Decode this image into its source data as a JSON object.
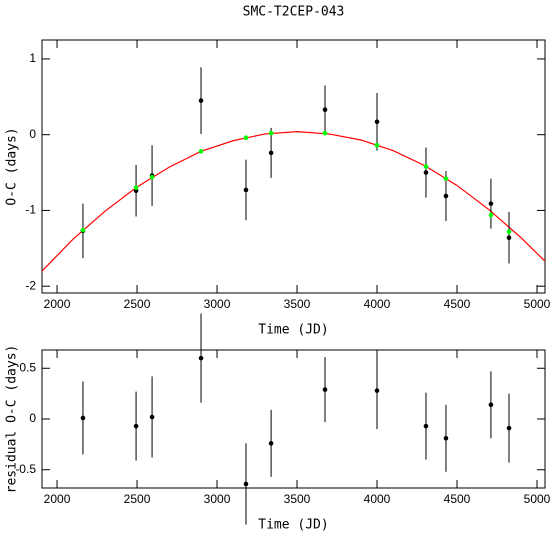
{
  "chart_data": [
    {
      "type": "scatter",
      "title": "SMC-T2CEP-043",
      "xlabel": "Time (JD)",
      "ylabel": "O-C (days)",
      "xlim": [
        1906,
        5050
      ],
      "ylim": [
        -2.09,
        1.25
      ],
      "xticks": [
        2000,
        2500,
        3000,
        3500,
        4000,
        4500,
        5000
      ],
      "yticks": [
        -2,
        -1,
        0,
        1
      ],
      "series": [
        {
          "style": "line",
          "color": "#ff0000",
          "x": [
            1906,
            2100,
            2300,
            2500,
            2700,
            2900,
            3100,
            3300,
            3500,
            3700,
            3900,
            4100,
            4300,
            4500,
            4700,
            4900,
            5050
          ],
          "values": [
            -1.8,
            -1.38,
            -1.01,
            -0.69,
            -0.43,
            -0.22,
            -0.08,
            0.01,
            0.04,
            0.01,
            -0.07,
            -0.21,
            -0.41,
            -0.67,
            -0.99,
            -1.36,
            -1.67
          ]
        },
        {
          "style": "points",
          "color": "#000000",
          "x": [
            2162,
            2494,
            2594,
            2900,
            3181,
            3338,
            3675,
            4000,
            4306,
            4431,
            4712,
            4825
          ],
          "values": [
            -1.27,
            -0.74,
            -0.54,
            0.45,
            -0.73,
            -0.24,
            0.33,
            0.17,
            -0.5,
            -0.81,
            -0.91,
            -1.36
          ],
          "errors": [
            0.36,
            0.34,
            0.4,
            0.44,
            0.4,
            0.33,
            0.32,
            0.38,
            0.33,
            0.33,
            0.33,
            0.34
          ]
        },
        {
          "style": "points",
          "color": "#00ff00",
          "x": [
            2162,
            2494,
            2594,
            2900,
            3181,
            3338,
            3675,
            4000,
            4306,
            4431,
            4712,
            4825
          ],
          "values": [
            -1.26,
            -0.7,
            -0.56,
            -0.22,
            -0.04,
            0.02,
            0.02,
            -0.14,
            -0.42,
            -0.58,
            -1.06,
            -1.28
          ]
        }
      ]
    },
    {
      "type": "scatter",
      "xlabel": "Time (JD)",
      "ylabel": "residual O-C (days)",
      "xlim": [
        1906,
        5050
      ],
      "ylim": [
        -0.68,
        0.68
      ],
      "xticks": [
        2000,
        2500,
        3000,
        3500,
        4000,
        4500,
        5000
      ],
      "yticks": [
        -0.5,
        0,
        0.5
      ],
      "series": [
        {
          "style": "points",
          "color": "#000000",
          "x": [
            2162,
            2494,
            2594,
            2900,
            3181,
            3338,
            3675,
            4000,
            4306,
            4431,
            4712,
            4825
          ],
          "values": [
            0.01,
            -0.07,
            0.02,
            0.6,
            -0.64,
            -0.24,
            0.29,
            0.28,
            -0.07,
            -0.19,
            0.14,
            -0.09
          ],
          "errors": [
            0.36,
            0.34,
            0.4,
            0.44,
            0.4,
            0.33,
            0.32,
            0.38,
            0.33,
            0.33,
            0.33,
            0.34
          ]
        }
      ]
    }
  ]
}
